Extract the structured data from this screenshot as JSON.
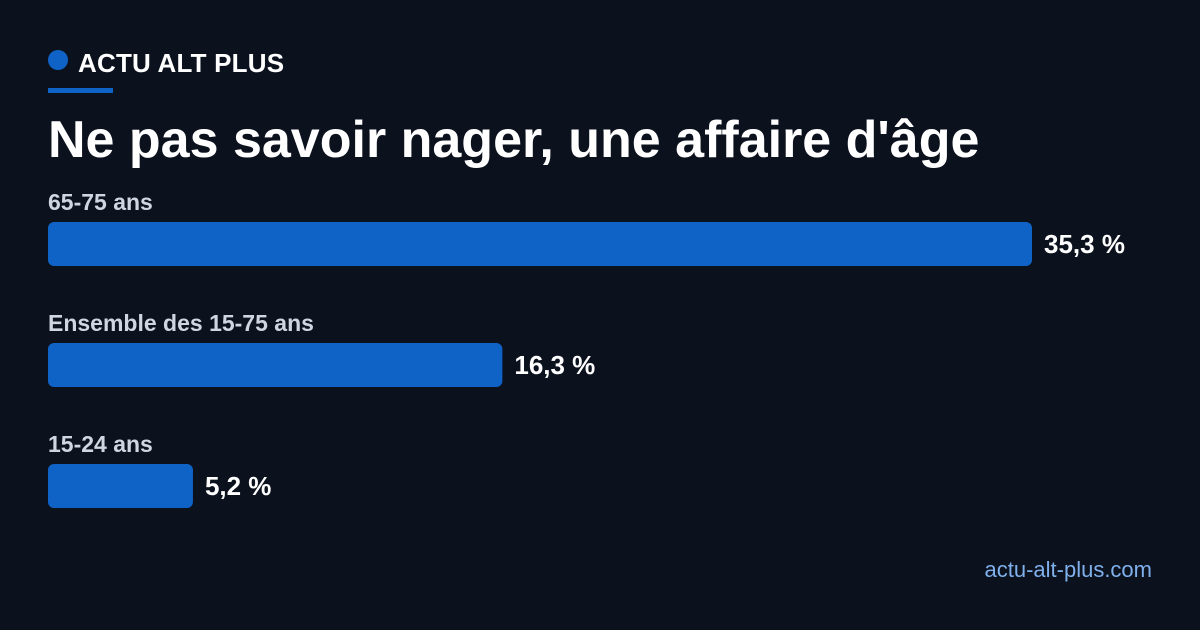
{
  "brand": {
    "name": "ACTU ALT PLUS",
    "accent_color": "#0f63c6"
  },
  "footer": {
    "url": "actu-alt-plus.com"
  },
  "chart_data": {
    "type": "bar",
    "orientation": "horizontal",
    "title": "Ne pas savoir nager, une affaire d'âge",
    "categories": [
      "65-75 ans",
      "Ensemble des 15-75 ans",
      "15-24 ans"
    ],
    "values": [
      35.3,
      16.3,
      5.2
    ],
    "value_labels": [
      "35,3 %",
      "16,3 %",
      "5,2 %"
    ],
    "unit": "%",
    "xlim": [
      0,
      35.3
    ],
    "grid": false,
    "bar_color": "#0f63c6"
  }
}
